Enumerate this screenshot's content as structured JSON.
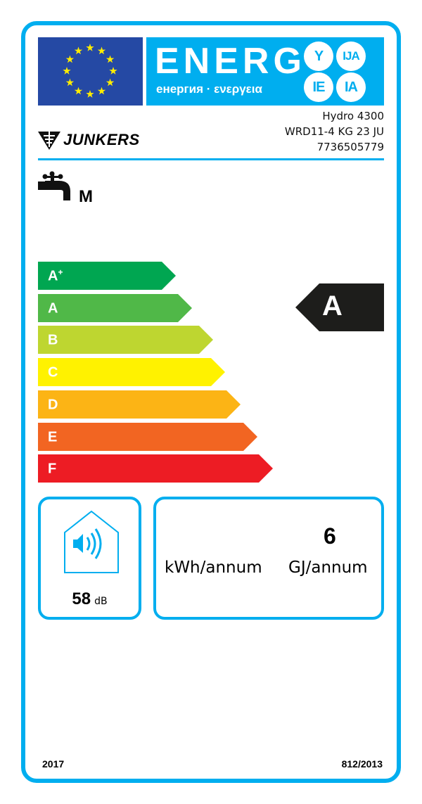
{
  "header": {
    "energy_title": "ENERG",
    "energy_subtitle": "енергия · ενεργεια",
    "suffixes": [
      "Y",
      "IJA",
      "IE",
      "IA"
    ]
  },
  "brand": "JUNKERS",
  "model": {
    "name": "Hydro 4300",
    "code": "WRD11-4 KG 23 JU",
    "number": "7736505779"
  },
  "load_profile": "M",
  "scale": [
    {
      "label": "A",
      "sup": "+",
      "color": "#00a651"
    },
    {
      "label": "A",
      "sup": "",
      "color": "#50b848"
    },
    {
      "label": "B",
      "sup": "",
      "color": "#bed630"
    },
    {
      "label": "C",
      "sup": "",
      "color": "#fff200"
    },
    {
      "label": "D",
      "sup": "",
      "color": "#fcb415"
    },
    {
      "label": "E",
      "sup": "",
      "color": "#f26522"
    },
    {
      "label": "F",
      "sup": "",
      "color": "#ed1c24"
    }
  ],
  "rating": {
    "class": "A",
    "color": "#1d1d1b"
  },
  "noise": {
    "value": "58",
    "unit": "dB"
  },
  "consumption": {
    "gj_value": "6",
    "kwh_unit": "kWh/annum",
    "gj_unit": "GJ/annum"
  },
  "footer": {
    "year": "2017",
    "regulation": "812/2013"
  },
  "colors": {
    "accent": "#00aeef",
    "flag": "#2549a4",
    "stars": "#ffed00"
  }
}
